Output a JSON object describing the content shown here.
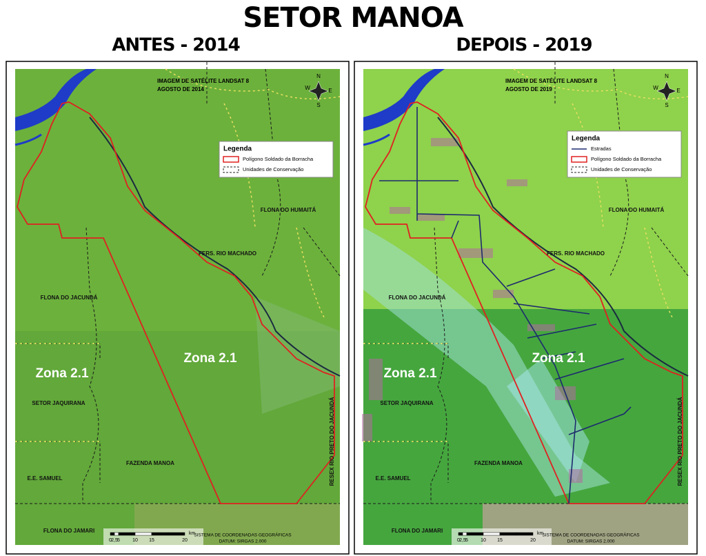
{
  "title": "SETOR MANOA",
  "panels": [
    {
      "heading": "ANTES - 2014",
      "caption": [
        "IMAGEM DE SATÉLITE LANDSAT 8",
        "AGOSTO DE 2014"
      ],
      "compass": [
        "N",
        "W",
        "E",
        "S"
      ],
      "legend": {
        "title": "Legenda",
        "items": [
          "Polígono Soldado da Borracha",
          "Unidades de Conservação"
        ]
      },
      "places": [
        "FLONA DO HUMAITÁ",
        "FERS. RIO MACHADO",
        "FLONA DO JACUNDÁ",
        "SETOR JAQUIRANA",
        "FAZENDA MANOA",
        "E.E. SAMUEL",
        "FLONA DO JAMARI",
        "RESEX RIO PRETO DO JACUNDÁ"
      ],
      "zones": [
        "Zona 2.1",
        "Zona 2.1"
      ],
      "scale": {
        "labels": [
          "0",
          "2,5",
          "5",
          "10",
          "15",
          "20"
        ],
        "unit": "km"
      },
      "crs": [
        "SISTEMA DE COORDENADAS GEOGRÁFICAS",
        "DATUM: SIRGAS 2.000"
      ]
    },
    {
      "heading": "DEPOIS - 2019",
      "caption": [
        "IMAGEM DE SATÉLITE LANDSAT 8",
        "AGOSTO DE 2019"
      ],
      "compass": [
        "N",
        "W",
        "E",
        "S"
      ],
      "legend": {
        "title": "Legenda",
        "items": [
          "Estradas",
          "Polígono Soldado da Borracha",
          "Unidades de Conservação"
        ]
      },
      "places": [
        "FLONA DO HUMAITÁ",
        "FERS. RIO MACHADO",
        "FLONA DO JACUNDÁ",
        "SETOR JAQUIRANA",
        "FAZENDA MANOA",
        "E.E. SAMUEL",
        "FLONA DO JAMARI",
        "RESEX RIO PRETO DO JACUNDÁ"
      ],
      "zones": [
        "Zona 2.1",
        "Zona 2.1"
      ],
      "scale": {
        "labels": [
          "0",
          "2,5",
          "5",
          "10",
          "15",
          "20"
        ],
        "unit": "km"
      },
      "crs": [
        "SISTEMA DE COORDENADAS GEOGRÁFICAS",
        "DATUM: SIRGAS 2.000"
      ]
    }
  ]
}
